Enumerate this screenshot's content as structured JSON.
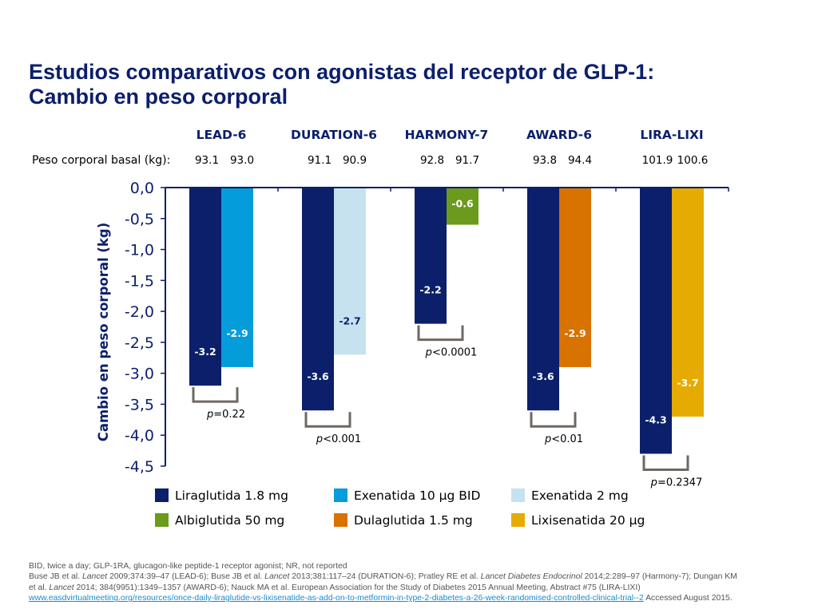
{
  "title": {
    "line1": "Estudios comparativos con agonistas del receptor de GLP-1:",
    "line2": "Cambio en peso corporal"
  },
  "baseline_label": "Peso corporal basal (kg):",
  "colors": {
    "title": "#0c1f6b",
    "axis": "#0c1f6b",
    "bracket": "#6e6863",
    "bar_label_dark": "#ffffff",
    "bar_label_light": "#0c1f6b"
  },
  "chart_data": {
    "type": "bar",
    "title": "",
    "xlabel": "",
    "ylabel": "Cambio en peso corporal (kg)",
    "ylim": [
      -4.5,
      0.0
    ],
    "yticks": [
      "0,0",
      "-0,5",
      "-1,0",
      "-1,5",
      "-2,0",
      "-2,5",
      "-3,0",
      "-3,5",
      "-4,0",
      "-4,5"
    ],
    "ytick_values": [
      0,
      -0.5,
      -1.0,
      -1.5,
      -2.0,
      -2.5,
      -3.0,
      -3.5,
      -4.0,
      -4.5
    ],
    "grid": false,
    "legend_position": "bottom",
    "groups": [
      {
        "name": "LEAD-6",
        "pvalue": "=0.22",
        "bars": [
          {
            "series": "Liraglutida 1.8 mg",
            "value": -3.2,
            "label": "-3.2",
            "baseline": "93.1"
          },
          {
            "series": "Exenatida 10 µg BID",
            "value": -2.9,
            "label": "-2.9",
            "baseline": "93.0"
          }
        ]
      },
      {
        "name": "DURATION-6",
        "pvalue": "<0.001",
        "bars": [
          {
            "series": "Liraglutida 1.8 mg",
            "value": -3.6,
            "label": "-3.6",
            "baseline": "91.1"
          },
          {
            "series": "Exenatida 2 mg",
            "value": -2.7,
            "label": "-2.7",
            "baseline": "90.9"
          }
        ]
      },
      {
        "name": "HARMONY-7",
        "pvalue": "<0.0001",
        "bars": [
          {
            "series": "Liraglutida 1.8 mg",
            "value": -2.2,
            "label": "-2.2",
            "baseline": "92.8"
          },
          {
            "series": "Albiglutida 50 mg",
            "value": -0.6,
            "label": "-0.6",
            "baseline": "91.7"
          }
        ]
      },
      {
        "name": "AWARD-6",
        "pvalue": "<0.01",
        "bars": [
          {
            "series": "Liraglutida 1.8 mg",
            "value": -3.6,
            "label": "-3.6",
            "baseline": "93.8"
          },
          {
            "series": "Dulaglutida 1.5 mg",
            "value": -2.9,
            "label": "-2.9",
            "baseline": "94.4"
          }
        ]
      },
      {
        "name": "LIRA-LIXI",
        "pvalue": "=0.2347",
        "bars": [
          {
            "series": "Liraglutida 1.8 mg",
            "value": -4.3,
            "label": "-4.3",
            "baseline": "101.9"
          },
          {
            "series": "Lixisenatida 20 µg",
            "value": -3.7,
            "label": "-3.7",
            "baseline": "100.6"
          }
        ]
      }
    ],
    "series": [
      {
        "name": "Liraglutida 1.8 mg",
        "color": "#0c1f6b"
      },
      {
        "name": "Exenatida 10 µg BID",
        "color": "#049cdb"
      },
      {
        "name": "Exenatida 2 mg",
        "color": "#c6e2ef"
      },
      {
        "name": "Albiglutida 50 mg",
        "color": "#6b9a1c"
      },
      {
        "name": "Dulaglutida 1.5 mg",
        "color": "#d87200"
      },
      {
        "name": "Lixisenatida 20 µg",
        "color": "#e6ab02"
      }
    ]
  },
  "footer": {
    "line1": "BID, twice a day; GLP-1RA, glucagon-like peptide-1 receptor agonist; NR, not reported",
    "line2_a": "Buse JB et al. ",
    "line2_b": "Lancet",
    "line2_c": " 2009;374:39–47 (LEAD-6); Buse JB et al. ",
    "line2_d": "Lancet",
    "line2_e": " 2013;381:117–24 (DURATION-6); Pratley RE et al. ",
    "line2_f": "Lancet Diabetes Endocrinol",
    "line2_g": " 2014;2:289–97 (Harmony-7); Dungan KM",
    "line3_a": "et al. ",
    "line3_b": "Lancet",
    "line3_c": " 2014; 384(9951):1349–1357 (AWARD-6); Nauck MA et al. European Association for the Study of Diabetes 2015 Annual Meeting, Abstract #75 (LIRA-LIXI)",
    "link": "www.easdvirtualmeeting.org/resources/once-daily-liraglutide-vs-lixisenatide-as-add-on-to-metformin-in-type-2-diabetes-a-26-week-randomised-controlled-clinical-trial--2",
    "accessed": " Accessed August 2015."
  }
}
